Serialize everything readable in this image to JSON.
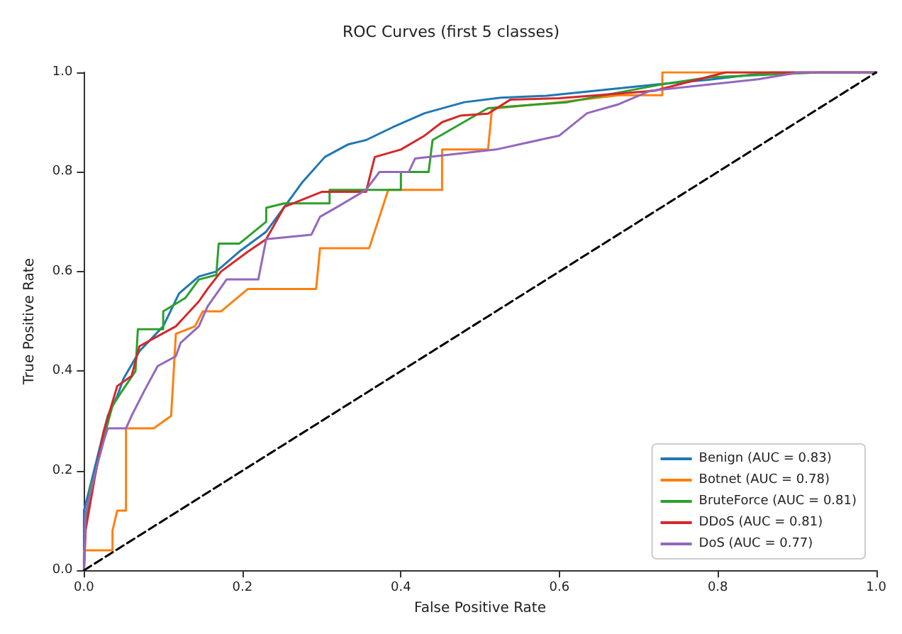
{
  "chart_data": {
    "type": "line",
    "title": "ROC Curves (first 5 classes)",
    "xlabel": "False Positive Rate",
    "ylabel": "True Positive Rate",
    "xlim": [
      0,
      1
    ],
    "ylim": [
      0,
      1
    ],
    "xticks": [
      {
        "value": 0,
        "label": "0.0"
      },
      {
        "value": 0.2,
        "label": "0.2"
      },
      {
        "value": 0.4,
        "label": "0.4"
      },
      {
        "value": 0.6,
        "label": "0.6"
      },
      {
        "value": 0.8,
        "label": "0.8"
      },
      {
        "value": 1,
        "label": "1.0"
      }
    ],
    "yticks": [
      {
        "value": 0,
        "label": "0.0"
      },
      {
        "value": 0.2,
        "label": "0.2"
      },
      {
        "value": 0.4,
        "label": "0.4"
      },
      {
        "value": 0.6,
        "label": "0.6"
      },
      {
        "value": 0.8,
        "label": "0.8"
      },
      {
        "value": 1,
        "label": "1.0"
      }
    ],
    "grid": false,
    "legend": "bottom right",
    "marker": "none",
    "series": [
      {
        "name": "Benign (AUC = 0.83)",
        "color": "#1f77b4",
        "x": [
          0,
          0,
          0.008,
          0.022,
          0.03,
          0.042,
          0.05,
          0.07,
          0.1,
          0.12,
          0.145,
          0.167,
          0.196,
          0.23,
          0.253,
          0.276,
          0.304,
          0.333,
          0.356,
          0.39,
          0.43,
          0.48,
          0.526,
          0.584,
          0.726,
          0.788,
          0.868,
          1
        ],
        "values": [
          0,
          0.12,
          0.17,
          0.26,
          0.31,
          0.35,
          0.385,
          0.44,
          0.49,
          0.556,
          0.59,
          0.6,
          0.64,
          0.68,
          0.73,
          0.78,
          0.83,
          0.855,
          0.864,
          0.89,
          0.918,
          0.94,
          0.949,
          0.953,
          0.976,
          0.985,
          1,
          1
        ]
      },
      {
        "name": "Botnet (AUC = 0.78)",
        "color": "#ff7f0e",
        "x": [
          0,
          0,
          0.036,
          0.036,
          0.042,
          0.053,
          0.053,
          0.088,
          0.11,
          0.116,
          0.14,
          0.15,
          0.173,
          0.207,
          0.293,
          0.298,
          0.36,
          0.373,
          0.384,
          0.452,
          0.452,
          0.51,
          0.515,
          0.6,
          0.675,
          0.73,
          0.73,
          1
        ],
        "values": [
          0,
          0.04,
          0.04,
          0.08,
          0.12,
          0.12,
          0.285,
          0.285,
          0.31,
          0.475,
          0.49,
          0.52,
          0.52,
          0.565,
          0.565,
          0.647,
          0.647,
          0.71,
          0.764,
          0.764,
          0.845,
          0.845,
          0.927,
          0.94,
          0.954,
          0.954,
          1,
          1
        ]
      },
      {
        "name": "BruteForce (AUC = 0.81)",
        "color": "#2ca02c",
        "x": [
          0,
          0.002,
          0.008,
          0.014,
          0.019,
          0.036,
          0.048,
          0.065,
          0.068,
          0.1,
          0.1,
          0.128,
          0.145,
          0.167,
          0.17,
          0.196,
          0.23,
          0.23,
          0.253,
          0.31,
          0.31,
          0.4,
          0.4,
          0.435,
          0.44,
          0.51,
          0.61,
          0.73,
          0.79,
          0.93,
          1
        ],
        "values": [
          0,
          0.087,
          0.17,
          0.19,
          0.23,
          0.33,
          0.36,
          0.4,
          0.484,
          0.484,
          0.52,
          0.547,
          0.584,
          0.593,
          0.656,
          0.656,
          0.7,
          0.728,
          0.737,
          0.737,
          0.764,
          0.764,
          0.8,
          0.8,
          0.864,
          0.928,
          0.94,
          0.976,
          0.99,
          1,
          1
        ]
      },
      {
        "name": "DDoS (AUC = 0.81)",
        "color": "#d62728",
        "x": [
          0,
          0.002,
          0.014,
          0.025,
          0.042,
          0.06,
          0.07,
          0.093,
          0.116,
          0.145,
          0.156,
          0.173,
          0.207,
          0.23,
          0.253,
          0.3,
          0.356,
          0.367,
          0.4,
          0.43,
          0.452,
          0.475,
          0.51,
          0.538,
          0.6,
          0.72,
          0.81,
          1
        ],
        "values": [
          0,
          0.08,
          0.19,
          0.28,
          0.37,
          0.39,
          0.45,
          0.47,
          0.49,
          0.54,
          0.565,
          0.6,
          0.64,
          0.665,
          0.73,
          0.76,
          0.76,
          0.83,
          0.845,
          0.873,
          0.9,
          0.913,
          0.917,
          0.945,
          0.948,
          0.963,
          1,
          1
        ]
      },
      {
        "name": "DoS (AUC = 0.77)",
        "color": "#9467bd",
        "x": [
          0,
          0.002,
          0.014,
          0.025,
          0.03,
          0.053,
          0.06,
          0.076,
          0.093,
          0.116,
          0.122,
          0.145,
          0.156,
          0.18,
          0.22,
          0.23,
          0.287,
          0.298,
          0.32,
          0.356,
          0.373,
          0.41,
          0.418,
          0.52,
          0.6,
          0.635,
          0.675,
          0.715,
          0.851,
          0.903,
          1
        ],
        "values": [
          0,
          0.114,
          0.195,
          0.26,
          0.285,
          0.285,
          0.31,
          0.36,
          0.41,
          0.43,
          0.457,
          0.49,
          0.53,
          0.584,
          0.584,
          0.665,
          0.674,
          0.71,
          0.73,
          0.764,
          0.8,
          0.8,
          0.827,
          0.845,
          0.873,
          0.918,
          0.936,
          0.963,
          0.986,
          1,
          1
        ]
      },
      {
        "color": "#000000",
        "line_style": "dashed",
        "x": [
          0,
          1
        ],
        "values": [
          0,
          1
        ]
      }
    ]
  }
}
